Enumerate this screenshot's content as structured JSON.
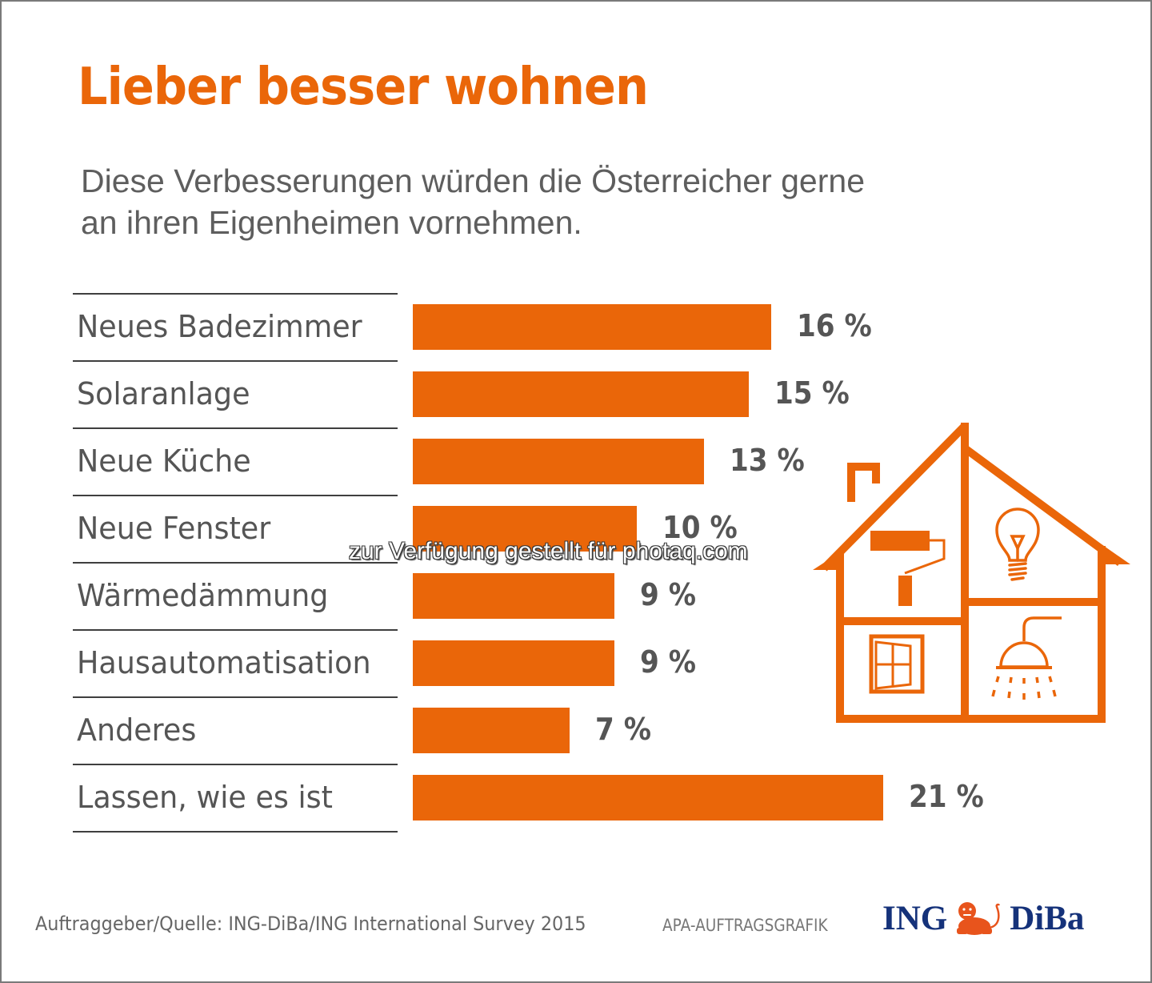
{
  "title": "Lieber besser wohnen",
  "subtitle": {
    "line1": "Diese Verbesserungen würden die Österreicher gerne",
    "line2": "an ihren Eigenheimen vornehmen."
  },
  "chart_data": {
    "type": "bar",
    "orientation": "horizontal",
    "title": "Lieber besser wohnen",
    "subtitle": "Diese Verbesserungen würden die Österreicher gerne an ihren Eigenheimen vornehmen.",
    "xlabel": "",
    "ylabel": "",
    "unit": "%",
    "xlim": [
      0,
      21
    ],
    "grid": false,
    "legend": "none",
    "categories": [
      "Neues Badezimmer",
      "Solaranlage",
      "Neue Küche",
      "Neue Fenster",
      "Wärmedämmung",
      "Hausautomatisation",
      "Anderes",
      "Lassen, wie es ist"
    ],
    "values": [
      16,
      15,
      13,
      10,
      9,
      9,
      7,
      21
    ],
    "value_labels": [
      "16 %",
      "15 %",
      "13 %",
      "10 %",
      "9 %",
      "9 %",
      "7 %",
      "21 %"
    ],
    "bar_color": "#ea6609"
  },
  "watermark": "zur Verfügung gestellt für photaq.com",
  "illustration": {
    "name": "house-icon",
    "rooms": [
      "paint-roller-icon",
      "lightbulb-icon",
      "window-icon",
      "shower-icon"
    ],
    "color": "#ea6609"
  },
  "footer": {
    "source": "Auftraggeber/Quelle: ING-DiBa/ING International Survey 2015",
    "agency": "APA-AUFTRAGSGRAFIK",
    "logo_left": "ING",
    "logo_right": "DiBa",
    "logo_color": "#15327a",
    "lion_color": "#e8541c"
  }
}
